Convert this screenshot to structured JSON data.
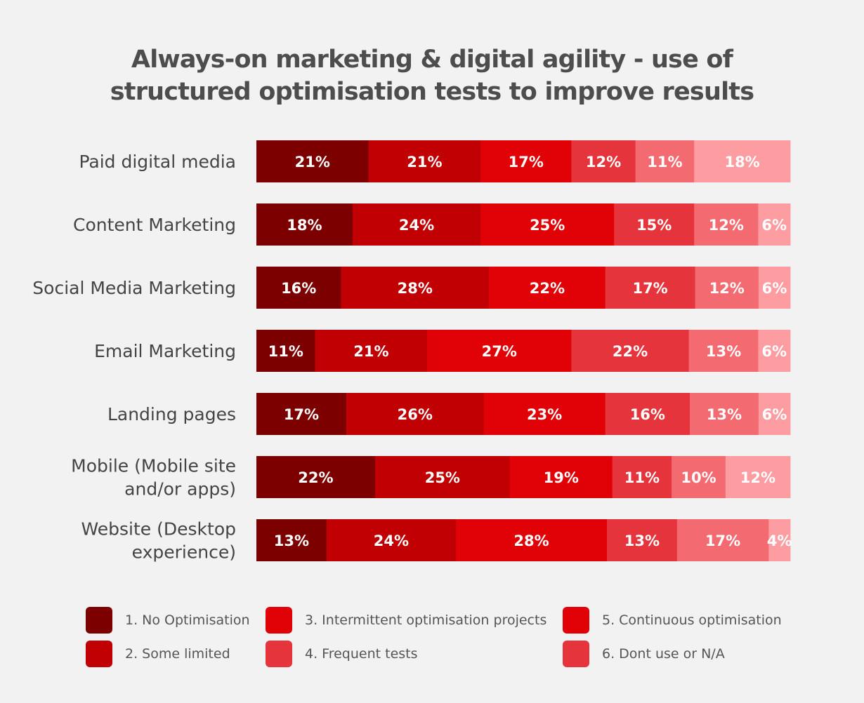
{
  "chart_data": {
    "type": "bar",
    "orientation": "horizontal",
    "stacked": true,
    "title": "Always-on marketing & digital agility - use of structured optimisation tests to improve results",
    "title_lines": [
      "Always-on marketing & digital agility - use of",
      "structured optimisation tests to improve results"
    ],
    "categories": [
      "Paid digital media",
      "Content Marketing",
      "Social Media Marketing",
      "Email Marketing",
      "Landing pages",
      "Mobile (Mobile site and/or apps)",
      "Website (Desktop experience)"
    ],
    "category_lines": [
      [
        "Paid digital media"
      ],
      [
        "Content Marketing"
      ],
      [
        "Social Media Marketing"
      ],
      [
        "Email Marketing"
      ],
      [
        "Landing pages"
      ],
      [
        "Mobile (Mobile site",
        "and/or apps)"
      ],
      [
        "Website (Desktop",
        "experience)"
      ]
    ],
    "series": [
      {
        "name": "1. No Optimisation",
        "color": "#7d0000",
        "values": [
          21,
          18,
          16,
          11,
          17,
          22,
          13
        ]
      },
      {
        "name": "2. Some limited",
        "color": "#c00003",
        "values": [
          21,
          24,
          28,
          21,
          26,
          25,
          24
        ]
      },
      {
        "name": "3. Intermittent optimisation projects",
        "color": "#e10207",
        "values": [
          17,
          25,
          22,
          27,
          23,
          19,
          28
        ]
      },
      {
        "name": "4. Frequent tests",
        "color": "#e5343b",
        "values": [
          12,
          15,
          17,
          22,
          16,
          11,
          13
        ]
      },
      {
        "name": "5. Continuous optimisation",
        "color": "#f36b70",
        "values": [
          11,
          12,
          12,
          13,
          13,
          10,
          17
        ]
      },
      {
        "name": "6. Dont use or N/A",
        "color": "#fd9da1",
        "values": [
          18,
          6,
          6,
          6,
          6,
          12,
          4
        ]
      }
    ],
    "value_suffix": "%",
    "legend_swatch_colors": [
      "#7d0000",
      "#c00003",
      "#e10207",
      "#e5343b",
      "#e10207",
      "#e5343b"
    ],
    "legend_placement": "bottom",
    "grid": false
  }
}
